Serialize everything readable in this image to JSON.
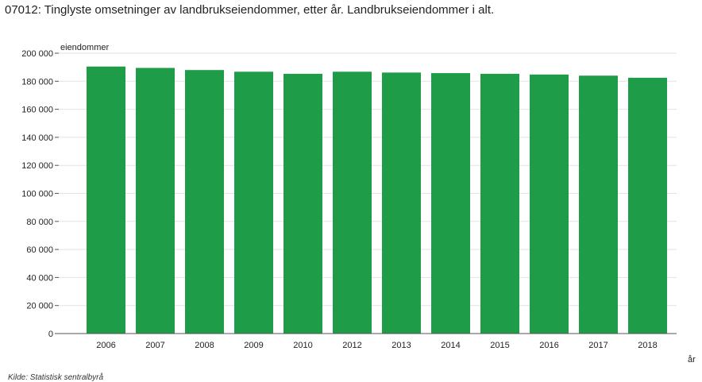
{
  "title": "07012: Tinglyste omsetninger av landbrukseiendommer, etter år. Landbrukseiendommer i alt.",
  "source": "Kilde:  Statistisk sentralbyrå",
  "chart_data": {
    "type": "bar",
    "categories": [
      "2006",
      "2007",
      "2008",
      "2009",
      "2010",
      "2012",
      "2013",
      "2014",
      "2015",
      "2016",
      "2017",
      "2018"
    ],
    "values": [
      190500,
      189500,
      188000,
      186800,
      185300,
      186800,
      186200,
      185800,
      185300,
      184800,
      184000,
      182500
    ],
    "ylabel": "eiendommer",
    "xlabel": "år",
    "ylim": [
      0,
      200000
    ],
    "yticks": [
      0,
      20000,
      40000,
      60000,
      80000,
      100000,
      120000,
      140000,
      160000,
      180000,
      200000
    ],
    "ytick_labels": [
      "0",
      "20 000",
      "40 000",
      "60 000",
      "80 000",
      "100 000",
      "120 000",
      "140 000",
      "160 000",
      "180 000",
      "200 000"
    ],
    "grid": true,
    "bar_color": "#1e9c48",
    "grid_color": "#e2e2e2"
  }
}
